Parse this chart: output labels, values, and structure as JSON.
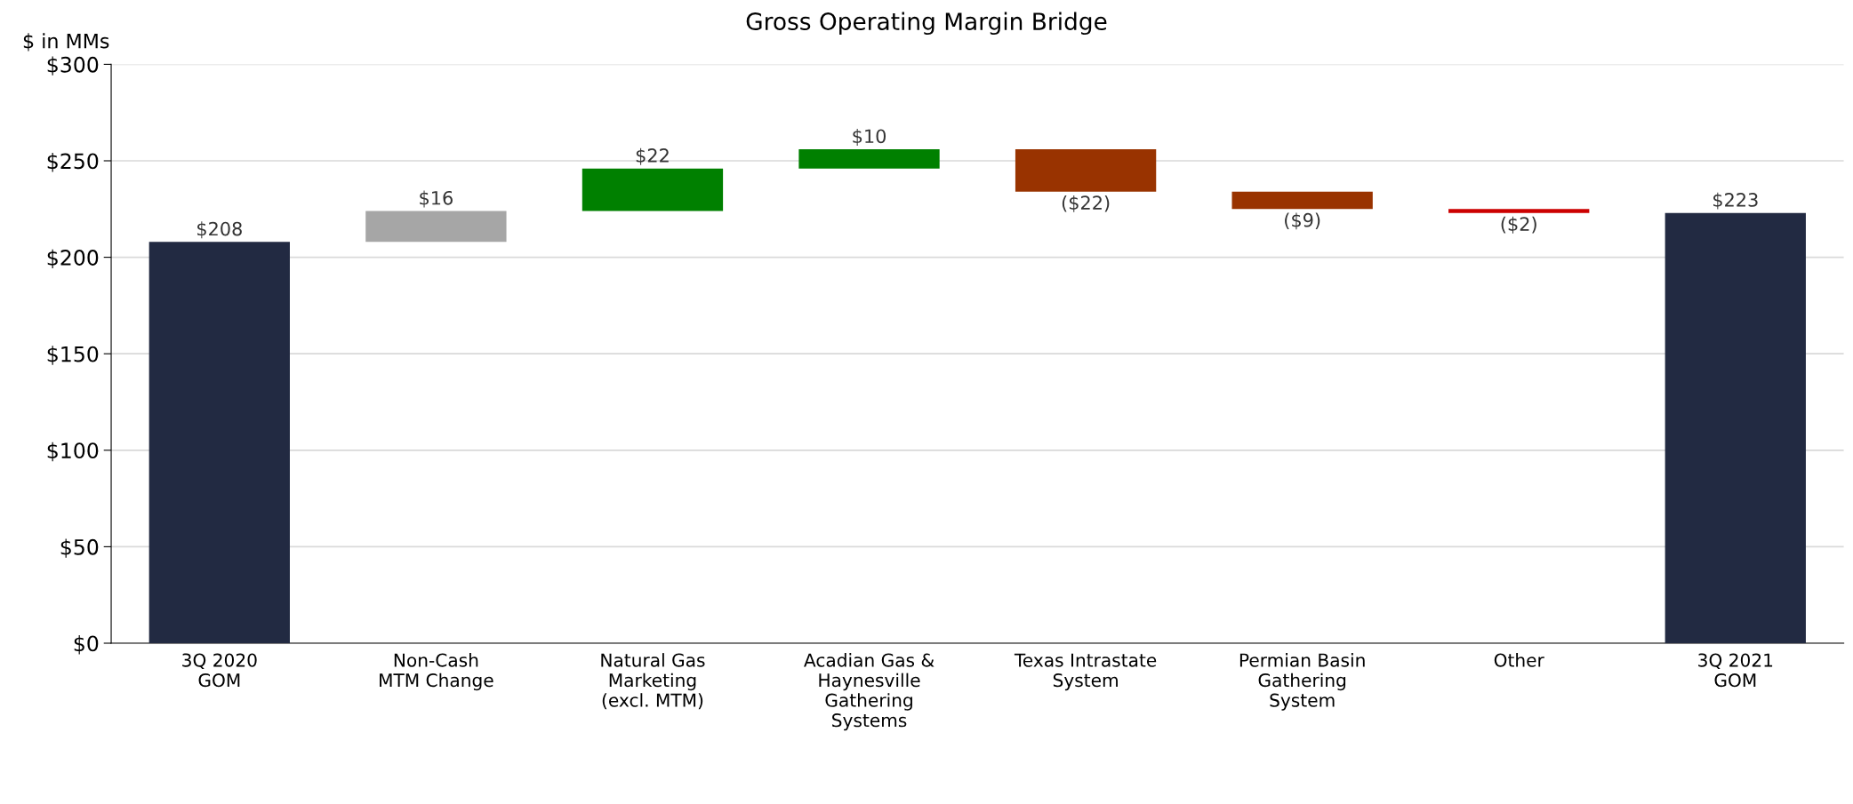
{
  "chart_data": {
    "type": "bar",
    "title": "Gross Operating Margin Bridge",
    "ylabel": "$ in MMs",
    "categories": [
      "3Q 2020\nGOM",
      "Non-Cash\nMTM Change",
      "Natural Gas\nMarketing\n(excl. MTM)",
      "Acadian Gas &\nHaynesville\nGathering\nSystems",
      "Texas Intrastate\nSystem",
      "Permian Basin\nGathering\nSystem",
      "Other",
      "3Q 2021\nGOM"
    ],
    "values": [
      208,
      16,
      22,
      10,
      -22,
      -9,
      -2,
      223
    ],
    "base": [
      0,
      208,
      224,
      246,
      256,
      234,
      225,
      0
    ],
    "colors": [
      "#222a42",
      "#a6a6a6",
      "#008000",
      "#008000",
      "#993300",
      "#993300",
      "#cc0000",
      "#222a42"
    ],
    "value_labels": [
      "$208",
      "$16",
      "$22",
      "$10",
      "($22)",
      "($9)",
      "($2)",
      "$223"
    ],
    "ylim": [
      0,
      300
    ],
    "yticks": [
      {
        "value": 0,
        "label": "$0"
      },
      {
        "value": 50,
        "label": "$50"
      },
      {
        "value": 100,
        "label": "$100"
      },
      {
        "value": 150,
        "label": "$150"
      },
      {
        "value": 200,
        "label": "$200"
      },
      {
        "value": 250,
        "label": "$250"
      },
      {
        "value": 300,
        "label": "$300"
      }
    ],
    "grid": "y"
  }
}
